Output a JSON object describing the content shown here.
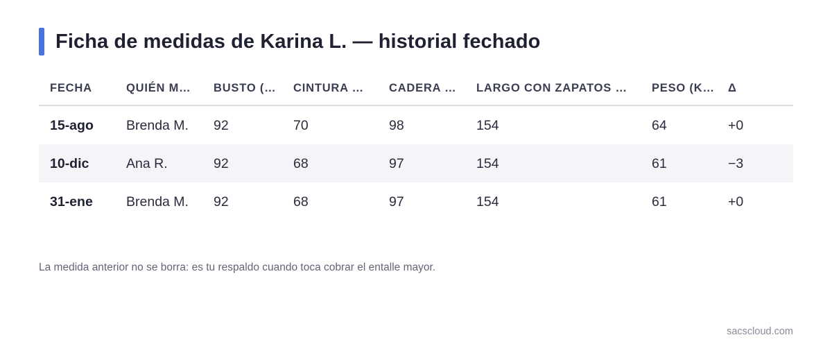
{
  "page": {
    "title": "Ficha de medidas de Karina L. — historial fechado",
    "note": "La medida anterior no se borra: es tu respaldo cuando toca cobrar el entalle mayor.",
    "footer": "sacscloud.com"
  },
  "colors": {
    "accent": "#4a72d8",
    "alt_row": "#f5f5f9",
    "title": "#1f2032"
  },
  "table": {
    "headers": [
      "FECHA",
      "QUIÉN M…",
      "BUSTO (…",
      "CINTURA …",
      "CADERA …",
      "LARGO CON ZAPATOS …",
      "PESO (K…",
      "Δ"
    ],
    "rows": [
      [
        "15-ago",
        "Brenda M.",
        "92",
        "70",
        "98",
        "154",
        "64",
        "+0"
      ],
      [
        "10-dic",
        "Ana R.",
        "92",
        "68",
        "97",
        "154",
        "61",
        "−3"
      ],
      [
        "31-ene",
        "Brenda M.",
        "92",
        "68",
        "97",
        "154",
        "61",
        "+0"
      ]
    ]
  }
}
